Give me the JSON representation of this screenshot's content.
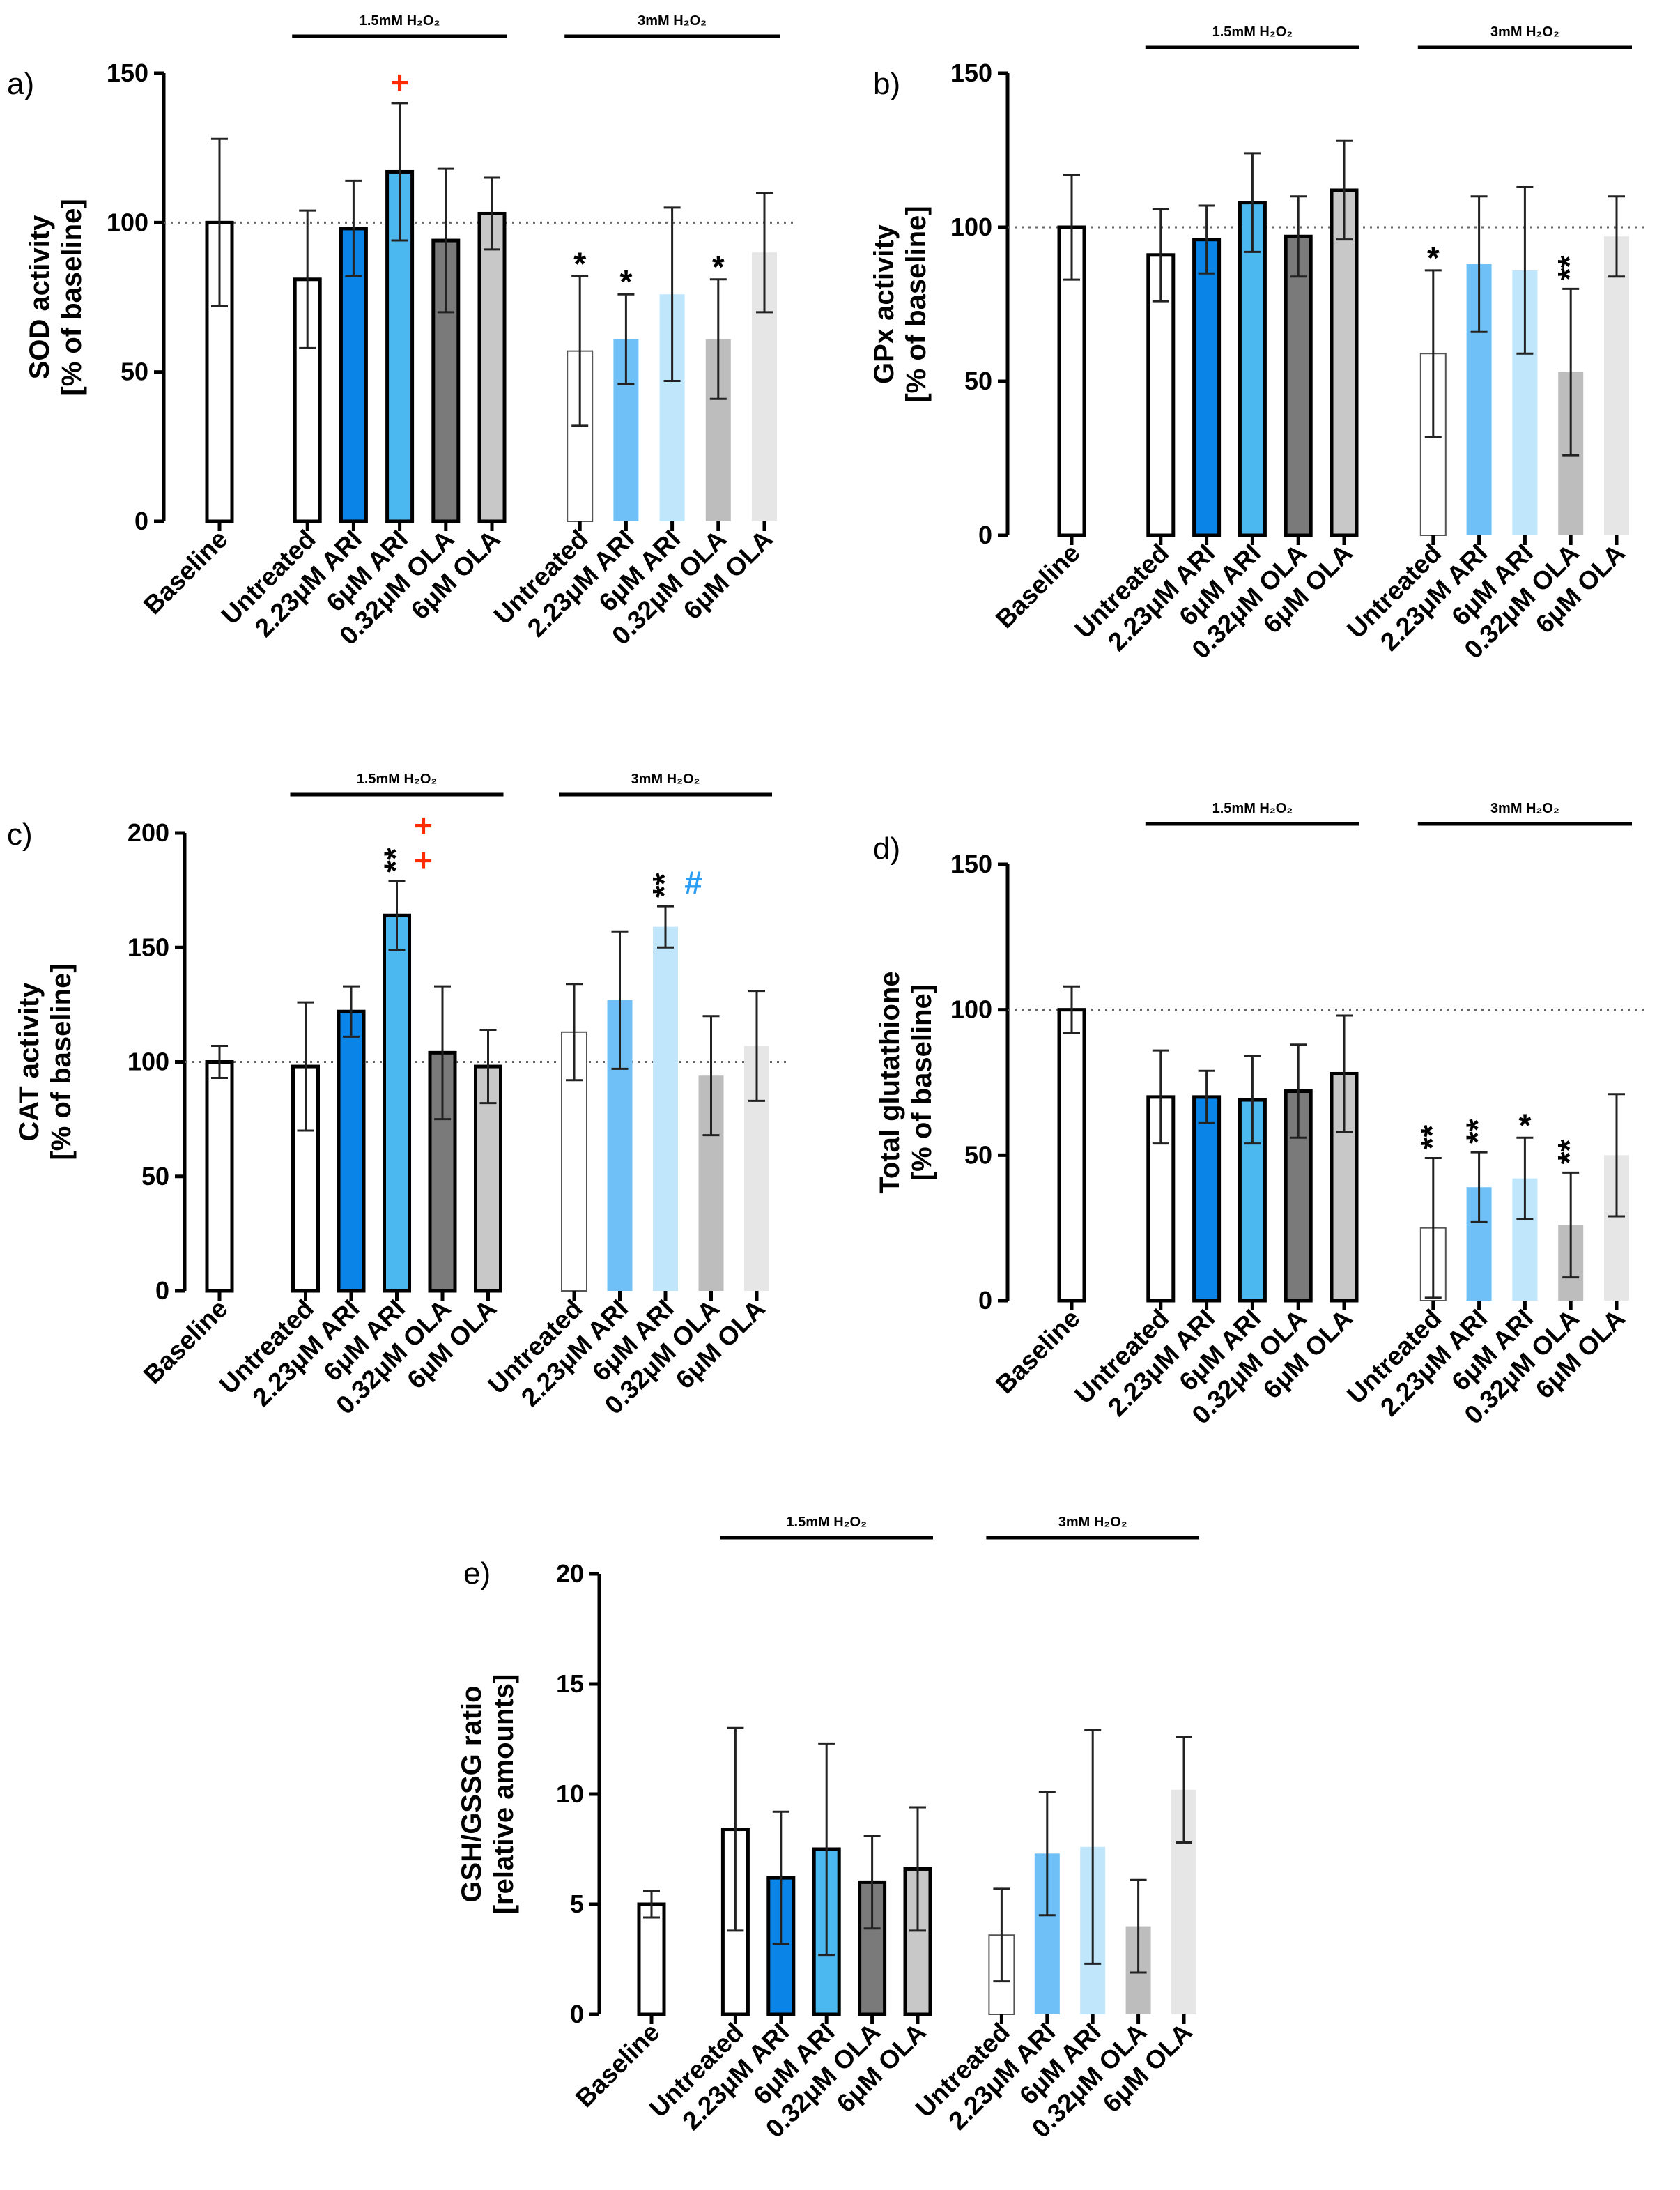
{
  "categories": [
    "Baseline",
    "Untreated",
    "2.23μM ARI",
    "6μM ARI",
    "0.32μM OLA",
    "6μM OLA",
    "Untreated",
    "2.23μM ARI",
    "6μM ARI",
    "0.32μM OLA",
    "6μM OLA"
  ],
  "group_labels": [
    "1.5mM H₂O₂",
    "3mM H₂O₂"
  ],
  "bar_colors": [
    "#ffffff",
    "#ffffff",
    "#0a84e6",
    "#4cb8f0",
    "#7a7a7a",
    "#c8c8c8",
    "#ffffff",
    "#6ec0f7",
    "#bfe6fb",
    "#bdbdbd",
    "#e6e6e6"
  ],
  "chart_data": [
    {
      "type": "bar",
      "panel": "a)",
      "ylabel_line1": "SOD activity",
      "ylabel_line2": "[% of baseline]",
      "ylim": [
        0,
        150
      ],
      "yticks": [
        "0",
        "50",
        "100",
        "150"
      ],
      "reference_line": 100,
      "values": [
        100,
        81,
        98,
        117,
        94,
        103,
        57,
        61,
        76,
        61,
        90
      ],
      "errors": [
        28,
        23,
        16,
        23,
        24,
        12,
        25,
        15,
        29,
        20,
        20
      ],
      "annotations": [
        {
          "bar": 3,
          "text": "+",
          "color": "#ff2a00"
        },
        {
          "bar": 6,
          "text": "*",
          "color": "#000000"
        },
        {
          "bar": 7,
          "text": "*",
          "color": "#000000"
        },
        {
          "bar": 9,
          "text": "*",
          "color": "#000000"
        }
      ]
    },
    {
      "type": "bar",
      "panel": "b)",
      "ylabel_line1": "GPx activity",
      "ylabel_line2": "[% of baseline]",
      "ylim": [
        0,
        150
      ],
      "yticks": [
        "0",
        "50",
        "100",
        "150"
      ],
      "reference_line": 100,
      "values": [
        100,
        91,
        96,
        108,
        97,
        112,
        59,
        88,
        86,
        53,
        97
      ],
      "errors": [
        17,
        15,
        11,
        16,
        13,
        16,
        27,
        22,
        27,
        27,
        13
      ],
      "annotations": [
        {
          "bar": 6,
          "text": "*",
          "color": "#000000"
        },
        {
          "bar": 9,
          "text": "**",
          "color": "#000000"
        }
      ]
    },
    {
      "type": "bar",
      "panel": "c)",
      "ylabel_line1": "CAT activity",
      "ylabel_line2": "[% of baseline]",
      "ylim": [
        0,
        200
      ],
      "yticks": [
        "0",
        "50",
        "100",
        "150",
        "200"
      ],
      "reference_line": 100,
      "values": [
        100,
        98,
        122,
        164,
        104,
        98,
        113,
        127,
        159,
        94,
        107
      ],
      "errors": [
        7,
        28,
        11,
        15,
        29,
        16,
        21,
        30,
        9,
        26,
        24
      ],
      "annotations": [
        {
          "bar": 3,
          "text": "**",
          "color": "#000000"
        },
        {
          "bar": 3,
          "text": "+",
          "color": "#ff2a00"
        },
        {
          "bar": 3,
          "text": "+",
          "color": "#ff2a00"
        },
        {
          "bar": 8,
          "text": "**",
          "color": "#000000"
        },
        {
          "bar": 8,
          "text": "#",
          "color": "#2a9df4"
        }
      ]
    },
    {
      "type": "bar",
      "panel": "d)",
      "ylabel_line1": "Total glutathione",
      "ylabel_line2": "[% of baseline]",
      "ylim": [
        0,
        150
      ],
      "yticks": [
        "0",
        "50",
        "100",
        "150"
      ],
      "reference_line": 100,
      "values": [
        100,
        70,
        70,
        69,
        72,
        78,
        25,
        39,
        42,
        26,
        50
      ],
      "errors": [
        8,
        16,
        9,
        15,
        16,
        20,
        24,
        12,
        14,
        18,
        21
      ],
      "annotations": [
        {
          "bar": 6,
          "text": "**",
          "color": "#000000"
        },
        {
          "bar": 7,
          "text": "**",
          "color": "#000000"
        },
        {
          "bar": 8,
          "text": "*",
          "color": "#000000"
        },
        {
          "bar": 9,
          "text": "**",
          "color": "#000000"
        }
      ]
    },
    {
      "type": "bar",
      "panel": "e)",
      "ylabel_line1": "GSH/GSSG ratio",
      "ylabel_line2": "[relative amounts]",
      "ylim": [
        0,
        20
      ],
      "yticks": [
        "0",
        "5",
        "10",
        "15",
        "20"
      ],
      "reference_line": null,
      "values": [
        5.0,
        8.4,
        6.2,
        7.5,
        6.0,
        6.6,
        3.6,
        7.3,
        7.6,
        4.0,
        10.2
      ],
      "errors": [
        0.6,
        4.6,
        3.0,
        4.8,
        2.1,
        2.8,
        2.1,
        2.8,
        5.3,
        2.1,
        2.4
      ],
      "annotations": []
    }
  ]
}
